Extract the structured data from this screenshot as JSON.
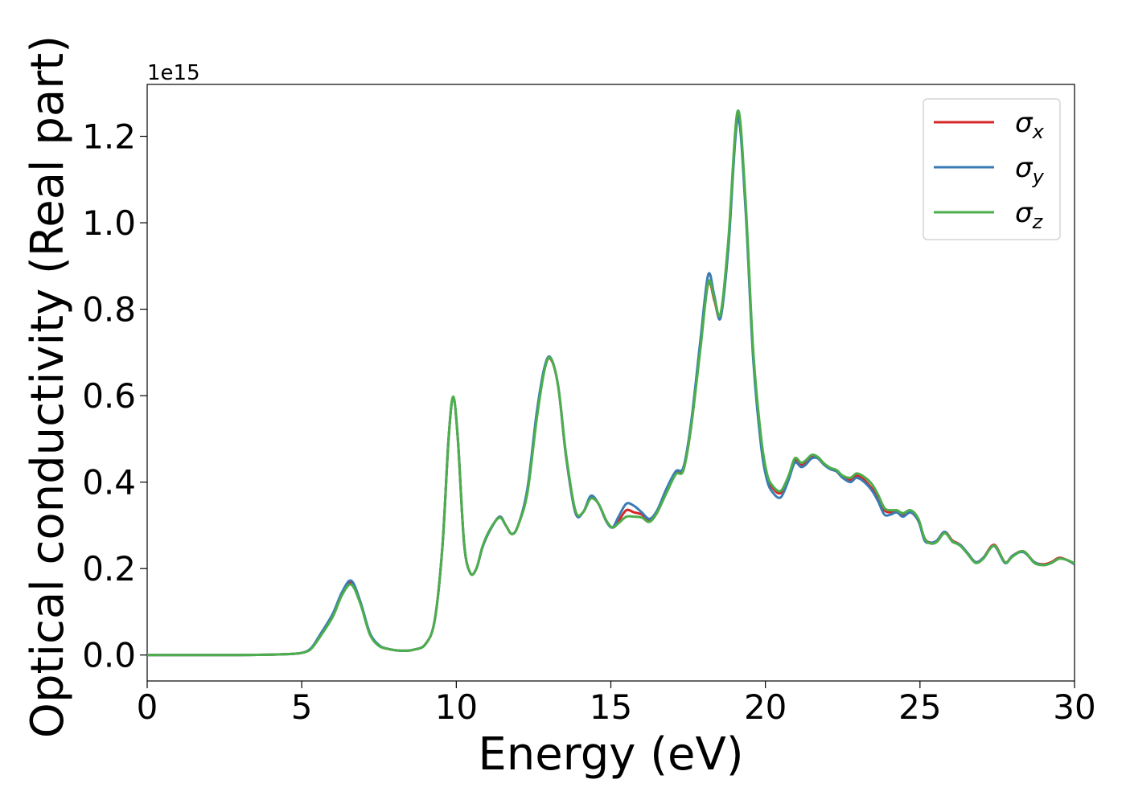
{
  "chart_data": {
    "type": "line",
    "title": "",
    "xlabel": "Energy (eV)",
    "ylabel": "Optical conductivity (Real part)",
    "y_offset_label": "1e15",
    "xlim": [
      0,
      30
    ],
    "ylim": [
      -0.06,
      1.32
    ],
    "x_ticks": [
      0,
      5,
      10,
      15,
      20,
      25,
      30
    ],
    "x_tick_labels": [
      "0",
      "5",
      "10",
      "15",
      "20",
      "25",
      "30"
    ],
    "y_ticks": [
      0.0,
      0.2,
      0.4,
      0.6,
      0.8,
      1.0,
      1.2
    ],
    "y_tick_labels": [
      "0.0",
      "0.2",
      "0.4",
      "0.6",
      "0.8",
      "1.0",
      "1.2"
    ],
    "grid": false,
    "legend_position": "top-right",
    "colors": {
      "sigma_x": "#d62728",
      "sigma_y": "#3a7bb5",
      "sigma_z": "#4cae4c"
    },
    "x": [
      0,
      1,
      2,
      3,
      4,
      4.5,
      5,
      5.3,
      5.6,
      6.0,
      6.3,
      6.6,
      6.9,
      7.2,
      7.5,
      7.8,
      8.2,
      8.6,
      9.0,
      9.3,
      9.55,
      9.75,
      9.9,
      10.05,
      10.25,
      10.45,
      10.65,
      10.85,
      11.1,
      11.4,
      11.6,
      11.8,
      12.0,
      12.3,
      12.6,
      12.85,
      13.05,
      13.3,
      13.55,
      13.85,
      14.1,
      14.35,
      14.6,
      14.85,
      15.05,
      15.25,
      15.5,
      15.75,
      16.0,
      16.25,
      16.5,
      16.8,
      17.1,
      17.35,
      17.6,
      17.9,
      18.15,
      18.35,
      18.55,
      18.8,
      19.1,
      19.35,
      19.6,
      19.85,
      20.05,
      20.25,
      20.5,
      20.75,
      20.95,
      21.15,
      21.3,
      21.5,
      21.7,
      21.9,
      22.1,
      22.3,
      22.5,
      22.75,
      22.95,
      23.2,
      23.45,
      23.65,
      23.85,
      24.05,
      24.25,
      24.45,
      24.7,
      24.95,
      25.15,
      25.35,
      25.55,
      25.8,
      26.05,
      26.3,
      26.55,
      26.8,
      27.05,
      27.4,
      27.75,
      28.0,
      28.35,
      28.7,
      29.0,
      29.25,
      29.5,
      29.75,
      30.0
    ],
    "series": [
      {
        "name": "σx",
        "values": [
          0.0,
          0.0,
          0.0,
          0.0,
          0.001,
          0.002,
          0.005,
          0.015,
          0.045,
          0.09,
          0.14,
          0.168,
          0.12,
          0.05,
          0.022,
          0.014,
          0.01,
          0.012,
          0.025,
          0.08,
          0.25,
          0.5,
          0.595,
          0.5,
          0.26,
          0.19,
          0.2,
          0.25,
          0.29,
          0.32,
          0.3,
          0.28,
          0.3,
          0.38,
          0.55,
          0.66,
          0.685,
          0.62,
          0.46,
          0.33,
          0.33,
          0.365,
          0.35,
          0.31,
          0.295,
          0.31,
          0.335,
          0.33,
          0.325,
          0.31,
          0.33,
          0.38,
          0.42,
          0.43,
          0.53,
          0.72,
          0.86,
          0.82,
          0.785,
          0.95,
          1.25,
          1.05,
          0.7,
          0.5,
          0.415,
          0.385,
          0.375,
          0.41,
          0.45,
          0.44,
          0.445,
          0.46,
          0.455,
          0.44,
          0.43,
          0.425,
          0.41,
          0.405,
          0.415,
          0.405,
          0.385,
          0.365,
          0.335,
          0.33,
          0.33,
          0.325,
          0.33,
          0.31,
          0.27,
          0.26,
          0.265,
          0.285,
          0.265,
          0.255,
          0.235,
          0.215,
          0.225,
          0.255,
          0.215,
          0.23,
          0.24,
          0.215,
          0.21,
          0.215,
          0.225,
          0.22,
          0.21
        ]
      },
      {
        "name": "σy",
        "values": [
          0.0,
          0.0,
          0.0,
          0.0,
          0.001,
          0.002,
          0.005,
          0.016,
          0.048,
          0.095,
          0.145,
          0.172,
          0.123,
          0.052,
          0.023,
          0.014,
          0.01,
          0.012,
          0.025,
          0.08,
          0.25,
          0.5,
          0.595,
          0.5,
          0.26,
          0.19,
          0.2,
          0.25,
          0.29,
          0.32,
          0.3,
          0.28,
          0.3,
          0.385,
          0.56,
          0.665,
          0.688,
          0.62,
          0.46,
          0.33,
          0.33,
          0.368,
          0.35,
          0.31,
          0.295,
          0.32,
          0.35,
          0.345,
          0.33,
          0.315,
          0.335,
          0.385,
          0.425,
          0.435,
          0.54,
          0.73,
          0.88,
          0.83,
          0.78,
          0.94,
          1.24,
          1.04,
          0.69,
          0.49,
          0.405,
          0.375,
          0.365,
          0.405,
          0.445,
          0.435,
          0.44,
          0.455,
          0.455,
          0.44,
          0.43,
          0.425,
          0.41,
          0.4,
          0.41,
          0.4,
          0.38,
          0.355,
          0.325,
          0.325,
          0.33,
          0.32,
          0.33,
          0.31,
          0.265,
          0.26,
          0.265,
          0.285,
          0.262,
          0.255,
          0.235,
          0.215,
          0.225,
          0.252,
          0.213,
          0.23,
          0.238,
          0.215,
          0.208,
          0.213,
          0.223,
          0.22,
          0.21
        ]
      },
      {
        "name": "σz",
        "values": [
          0.0,
          0.0,
          0.0,
          0.0,
          0.001,
          0.002,
          0.005,
          0.014,
          0.043,
          0.088,
          0.138,
          0.163,
          0.118,
          0.048,
          0.021,
          0.014,
          0.01,
          0.012,
          0.025,
          0.08,
          0.25,
          0.5,
          0.598,
          0.5,
          0.262,
          0.19,
          0.2,
          0.252,
          0.292,
          0.318,
          0.3,
          0.28,
          0.3,
          0.375,
          0.545,
          0.658,
          0.687,
          0.62,
          0.465,
          0.335,
          0.33,
          0.362,
          0.35,
          0.312,
          0.295,
          0.305,
          0.32,
          0.32,
          0.318,
          0.308,
          0.33,
          0.375,
          0.418,
          0.428,
          0.53,
          0.71,
          0.862,
          0.825,
          0.79,
          0.96,
          1.258,
          1.06,
          0.71,
          0.51,
          0.42,
          0.39,
          0.38,
          0.415,
          0.455,
          0.445,
          0.45,
          0.463,
          0.458,
          0.443,
          0.433,
          0.428,
          0.415,
          0.41,
          0.42,
          0.412,
          0.395,
          0.37,
          0.34,
          0.335,
          0.335,
          0.328,
          0.335,
          0.315,
          0.27,
          0.258,
          0.262,
          0.282,
          0.263,
          0.253,
          0.233,
          0.213,
          0.223,
          0.253,
          0.215,
          0.228,
          0.24,
          0.213,
          0.208,
          0.213,
          0.223,
          0.22,
          0.212
        ]
      }
    ],
    "legend": [
      {
        "symbol": "σ",
        "subscript": "x"
      },
      {
        "symbol": "σ",
        "subscript": "y"
      },
      {
        "symbol": "σ",
        "subscript": "z"
      }
    ]
  }
}
